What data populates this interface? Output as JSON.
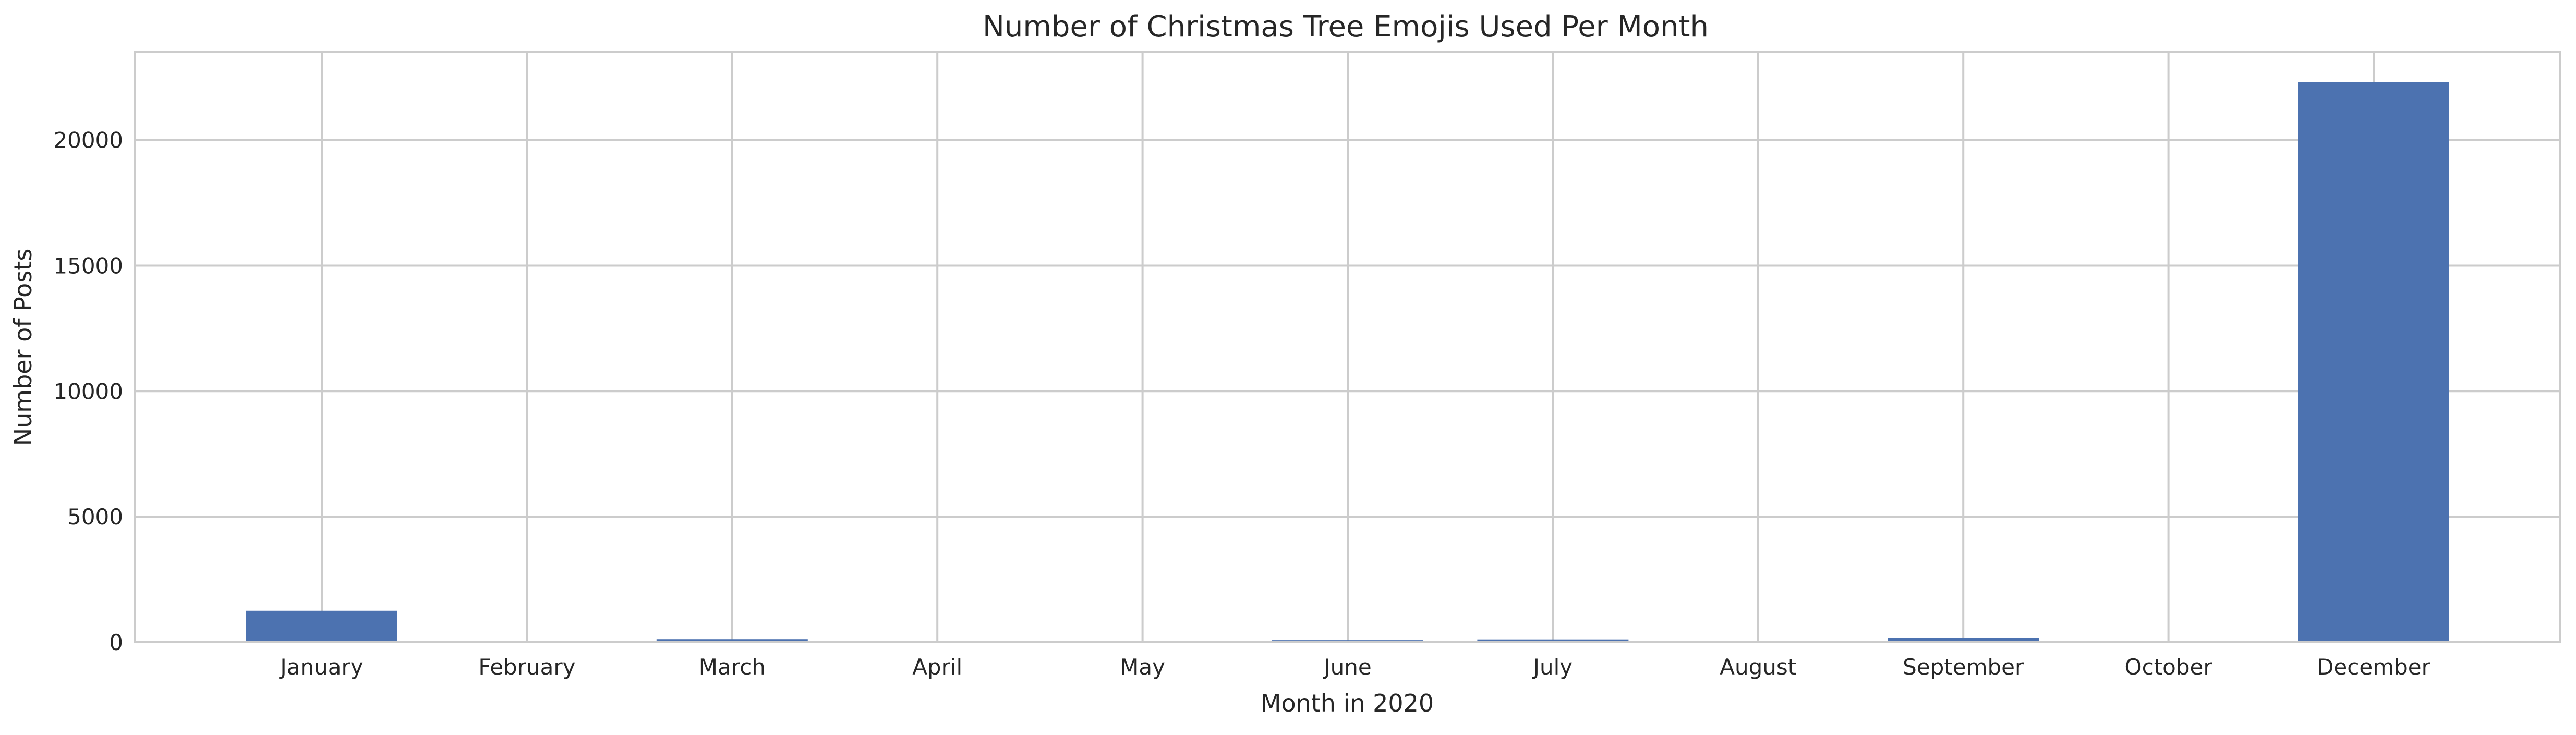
{
  "chart_data": {
    "type": "bar",
    "title": "Number of Christmas Tree Emojis Used Per Month",
    "xlabel": "Month in 2020",
    "ylabel": "Number of Posts",
    "categories": [
      "January",
      "February",
      "March",
      "April",
      "May",
      "June",
      "July",
      "August",
      "September",
      "October",
      "December"
    ],
    "values": [
      1250,
      30,
      120,
      20,
      15,
      80,
      110,
      25,
      170,
      60,
      22300
    ],
    "ylim": [
      0,
      23500
    ],
    "yticks": [
      0,
      5000,
      10000,
      15000,
      20000
    ],
    "grid": true,
    "bar_color": "#4c72b0",
    "grid_color": "#cccccc",
    "axes_edge_color": "#cccccc"
  }
}
